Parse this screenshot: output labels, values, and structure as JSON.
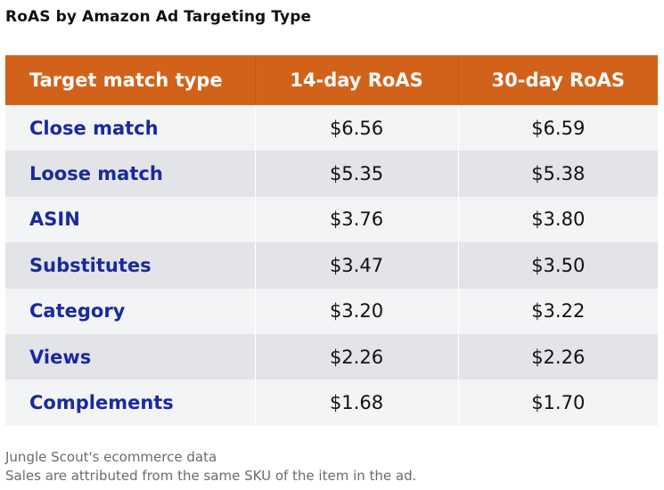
{
  "chart_data": {
    "type": "table",
    "title": "RoAS by Amazon Ad Targeting Type",
    "columns": [
      "Target match type",
      "14-day RoAS",
      "30-day RoAS"
    ],
    "rows": [
      {
        "type": "Close match",
        "roas_14": "$6.56",
        "roas_30": "$6.59"
      },
      {
        "type": "Loose match",
        "roas_14": "$5.35",
        "roas_30": "$5.38"
      },
      {
        "type": "ASIN",
        "roas_14": "$3.76",
        "roas_30": "$3.80"
      },
      {
        "type": "Substitutes",
        "roas_14": "$3.47",
        "roas_30": "$3.50"
      },
      {
        "type": "Category",
        "roas_14": "$3.20",
        "roas_30": "$3.22"
      },
      {
        "type": "Views",
        "roas_14": "$2.26",
        "roas_30": "$2.26"
      },
      {
        "type": "Complements",
        "roas_14": "$1.68",
        "roas_30": "$1.70"
      }
    ],
    "source_lines": [
      "Jungle Scout's ecommerce data",
      "Sales are attributed from the same SKU of the item in the ad."
    ]
  },
  "colors": {
    "header_bg": "#d2621a",
    "label_text": "#1a2a9c",
    "row_light": "#f3f4f6",
    "row_dark": "#e2e4e8"
  }
}
